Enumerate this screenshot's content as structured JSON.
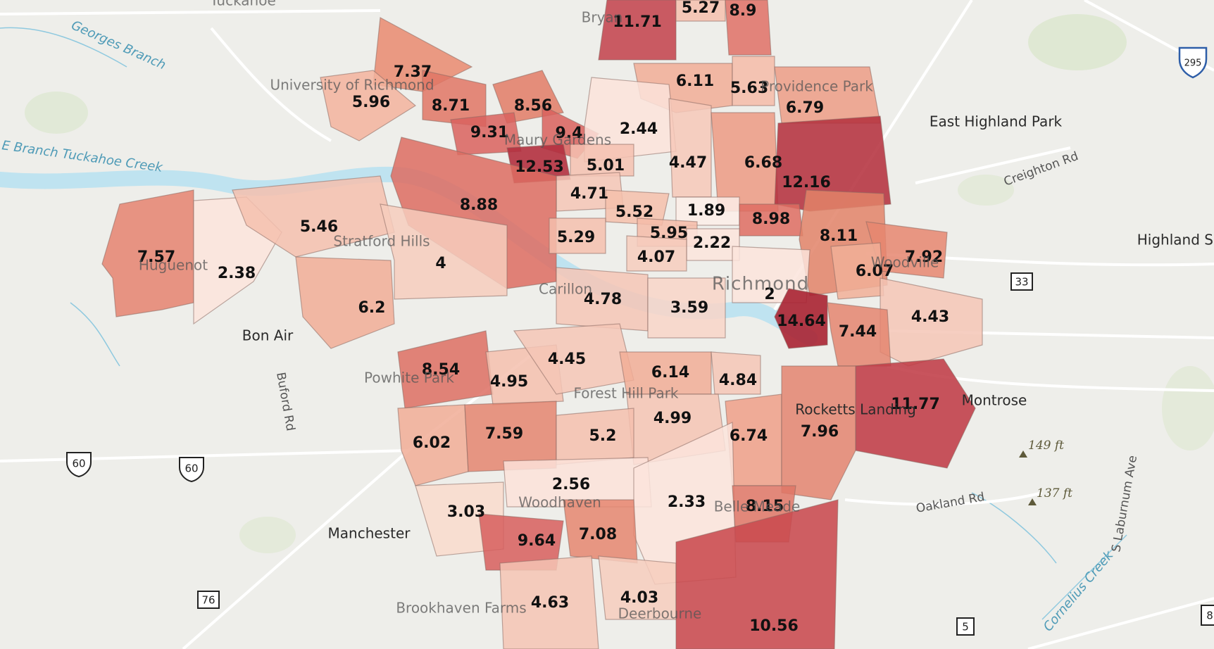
{
  "map": {
    "colors": {
      "background": "#eeeeea",
      "water": "#bfe3f0",
      "road": "#ffffff",
      "park": "#d9e6c9",
      "choropleth_low": "#fbe9e4",
      "choropleth_high": "#c0394a"
    },
    "place_labels": {
      "tuckahoe": "Tuckahoe",
      "university": "University of Richmond",
      "maury_gardens": "Maury Gardens",
      "providence_park": "Providence Park",
      "east_highland_park": "East Highland Park",
      "highland_springs": "Highland Springs",
      "stratford_hills": "Stratford Hills",
      "huguenot": "Huguenot",
      "bon_air": "Bon Air",
      "carillon": "Carillon",
      "richmond": "Richmond",
      "woodville": "Woodville",
      "powhite_park": "Powhite Park",
      "forest_hill_park": "Forest Hill Park",
      "rocketts_landing": "Rocketts Landing",
      "montrose": "Montrose",
      "manchester": "Manchester",
      "woodhaven": "Woodhaven",
      "belle_meade": "Belle Meade",
      "brookhaven_farms": "Brookhaven Farms",
      "deerbourne": "Deerbourne",
      "bryan": "Bryan"
    },
    "water_labels": {
      "georges_branch": "Georges Branch",
      "tuckahoe_creek": "E Branch Tuckahoe Creek",
      "cornelius_creek": "Cornelius Creek"
    },
    "road_labels": {
      "creighton_rd": "Creighton Rd",
      "buford_rd": "Buford Rd",
      "oakland_rd": "Oakland Rd",
      "s_laburnum_ave": "S Laburnum Ave"
    },
    "elevation_labels": [
      "149 ft",
      "137 ft"
    ],
    "shields": {
      "i295": "295",
      "us60a": "60",
      "us60b": "60",
      "sr33": "33",
      "sr76": "76",
      "sr5": "5",
      "edge_8": "8"
    },
    "tract_values": [
      "11.71",
      "5.27",
      "8.9",
      "7.37",
      "5.96",
      "8.71",
      "8.56",
      "9.31",
      "9.4",
      "12.53",
      "6.11",
      "5.63",
      "6.79",
      "2.44",
      "4.47",
      "6.68",
      "12.16",
      "5.01",
      "4.71",
      "5.52",
      "1.89",
      "8.98",
      "8.11",
      "7.92",
      "8.88",
      "5.95",
      "2.22",
      "6.07",
      "7.57",
      "2.38",
      "5.46",
      "4",
      "5.29",
      "4.07",
      "2",
      "4.43",
      "6.2",
      "4.78",
      "3.59",
      "14.64",
      "7.44",
      "8.54",
      "4.95",
      "4.45",
      "6.14",
      "4.84",
      "11.77",
      "4.99",
      "6.02",
      "7.59",
      "5.2",
      "6.74",
      "7.96",
      "2.56",
      "3.03",
      "2.33",
      "8.15",
      "9.64",
      "7.08",
      "4.63",
      "4.03",
      "10.56"
    ]
  }
}
